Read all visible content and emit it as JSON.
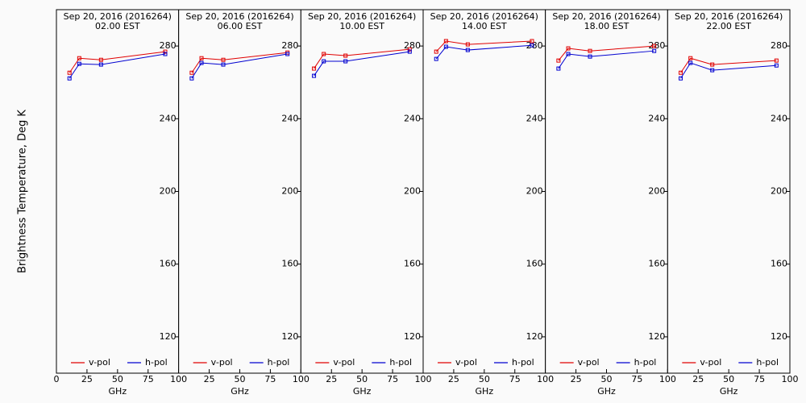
{
  "chart_data": [
    {
      "type": "line",
      "title": "Sep 20, 2016 (2016264)",
      "subtitle": "02.00 EST",
      "ylabel": "Brightness Temperature, Deg K",
      "xlabel": "GHz",
      "x": [
        10.7,
        18.7,
        36.5,
        89
      ],
      "xlim": [
        0,
        100
      ],
      "xticks": [
        0,
        25,
        50,
        75,
        100
      ],
      "ylim": [
        100,
        300
      ],
      "yticks": [
        120,
        160,
        200,
        240,
        280
      ],
      "series": [
        {
          "name": "v-pol",
          "color": "#e00000",
          "values": [
            265.3,
            273.3,
            272.4,
            276.9
          ]
        },
        {
          "name": "h-pol",
          "color": "#0000d0",
          "values": [
            262.2,
            270.2,
            269.8,
            275.6
          ]
        }
      ]
    },
    {
      "type": "line",
      "title": "Sep 20, 2016 (2016264)",
      "subtitle": "06.00 EST",
      "xlabel": "GHz",
      "x": [
        10.7,
        18.7,
        36.5,
        89
      ],
      "xlim": [
        0,
        100
      ],
      "xticks": [
        25,
        50,
        75,
        100
      ],
      "ylim": [
        100,
        300
      ],
      "yticks": [
        120,
        160,
        200,
        240,
        280
      ],
      "series": [
        {
          "name": "v-pol",
          "color": "#e00000",
          "values": [
            265.3,
            273.3,
            272.4,
            276.4
          ]
        },
        {
          "name": "h-pol",
          "color": "#0000d0",
          "values": [
            262.2,
            270.7,
            269.8,
            275.6
          ]
        }
      ]
    },
    {
      "type": "line",
      "title": "Sep 20, 2016 (2016264)",
      "subtitle": "10.00 EST",
      "xlabel": "GHz",
      "x": [
        10.7,
        18.7,
        36.5,
        89
      ],
      "xlim": [
        0,
        100
      ],
      "xticks": [
        25,
        50,
        75,
        100
      ],
      "ylim": [
        100,
        300
      ],
      "yticks": [
        120,
        160,
        200,
        240,
        280
      ],
      "series": [
        {
          "name": "v-pol",
          "color": "#e00000",
          "values": [
            267.6,
            275.6,
            274.7,
            278.2
          ]
        },
        {
          "name": "h-pol",
          "color": "#0000d0",
          "values": [
            263.6,
            271.6,
            271.6,
            276.9
          ]
        }
      ]
    },
    {
      "type": "line",
      "title": "Sep 20, 2016 (2016264)",
      "subtitle": "14.00 EST",
      "xlabel": "GHz",
      "x": [
        10.7,
        18.7,
        36.5,
        89
      ],
      "xlim": [
        0,
        100
      ],
      "xticks": [
        25,
        50,
        75,
        100
      ],
      "ylim": [
        100,
        300
      ],
      "yticks": [
        120,
        160,
        200,
        240,
        280
      ],
      "series": [
        {
          "name": "v-pol",
          "color": "#e00000",
          "values": [
            276.9,
            282.7,
            280.9,
            282.7
          ]
        },
        {
          "name": "h-pol",
          "color": "#0000d0",
          "values": [
            272.9,
            279.6,
            277.8,
            280.4
          ]
        }
      ]
    },
    {
      "type": "line",
      "title": "Sep 20, 2016 (2016264)",
      "subtitle": "18.00 EST",
      "xlabel": "GHz",
      "x": [
        10.7,
        18.7,
        36.5,
        89
      ],
      "xlim": [
        0,
        100
      ],
      "xticks": [
        25,
        50,
        75,
        100
      ],
      "ylim": [
        100,
        300
      ],
      "yticks": [
        120,
        160,
        200,
        240,
        280
      ],
      "series": [
        {
          "name": "v-pol",
          "color": "#e00000",
          "values": [
            272,
            278.7,
            277.3,
            280
          ]
        },
        {
          "name": "h-pol",
          "color": "#0000d0",
          "values": [
            267.6,
            275.6,
            274.2,
            277.3
          ]
        }
      ]
    },
    {
      "type": "line",
      "title": "Sep 20, 2016 (2016264)",
      "subtitle": "22.00 EST",
      "xlabel": "GHz",
      "x": [
        10.7,
        18.7,
        36.5,
        89
      ],
      "xlim": [
        0,
        100
      ],
      "xticks": [
        25,
        50,
        75,
        100
      ],
      "ylim": [
        100,
        300
      ],
      "yticks": [
        120,
        160,
        200,
        240,
        280
      ],
      "series": [
        {
          "name": "v-pol",
          "color": "#e00000",
          "values": [
            265.3,
            273.3,
            269.8,
            272
          ]
        },
        {
          "name": "h-pol",
          "color": "#0000d0",
          "values": [
            262.2,
            270.7,
            266.7,
            269.3
          ]
        }
      ]
    }
  ]
}
